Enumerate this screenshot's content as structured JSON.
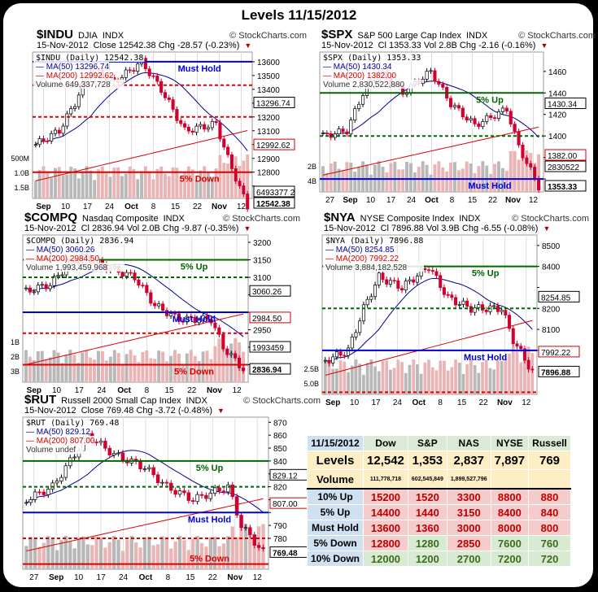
{
  "title": "Levels 11/15/2012",
  "watermark": "© StockCharts.com",
  "charts": [
    {
      "id": "indu",
      "symbol": "$INDU",
      "name": "DJIA",
      "exch": "INDX",
      "date": "15-Nov-2012",
      "line2": "Close 12542.38  Chg -28.57 (-0.23%)",
      "legend": [
        "$INDU (Daily) 12542.38",
        "MA(50) 13296.74",
        "MA(200) 12992.62",
        "Volume 649,337,728"
      ],
      "ylim": [
        12610,
        13670
      ],
      "ticks": [
        13600,
        13500,
        13400,
        13300,
        13200,
        13100,
        13000,
        12900,
        12800,
        12700
      ],
      "badges": [
        {
          "v": "13296.74",
          "y": 13296,
          "c": "#000"
        },
        {
          "v": "12992.62",
          "y": 12992,
          "c": "#c00"
        },
        {
          "v": "6493377 2",
          "y": 12640,
          "c": "#000"
        },
        {
          "v": "12542.38",
          "y": 12560,
          "c": "#000"
        }
      ],
      "vol_ticks": [
        "1.5B",
        "1.0B",
        "500M"
      ],
      "levels": [
        {
          "v": 13600,
          "c": "#0000dd",
          "d": false,
          "label": "Must Hold",
          "lc": "#0000dd"
        },
        {
          "v": 13430,
          "c": "#dd0000",
          "d": true
        },
        {
          "v": 13200,
          "c": "#dd0000",
          "d": true
        },
        {
          "v": 12800,
          "c": "#dd0000",
          "d": false,
          "label": "5% Down",
          "lc": "#dd0000"
        }
      ],
      "path": [
        [
          0,
          13000
        ],
        [
          6,
          13100
        ],
        [
          10,
          13300
        ],
        [
          14,
          13550
        ],
        [
          20,
          13450
        ],
        [
          27,
          13600
        ],
        [
          32,
          13400
        ],
        [
          38,
          13100
        ],
        [
          46,
          13150
        ],
        [
          49,
          12900
        ],
        [
          54,
          12550
        ]
      ],
      "xlabels": [
        "Sep",
        "10",
        "17",
        "24",
        "Oct",
        "8",
        "15",
        "22",
        "Nov",
        "12"
      ]
    },
    {
      "id": "spx",
      "symbol": "$SPX",
      "name": "S&P 500 Large Cap Index",
      "exch": "INDX",
      "date": "15-Nov-2012",
      "line2": "Cl 1353.33  Vol 2.8B  Chg -2.16 (-0.16%)",
      "legend": [
        "$SPX (Daily) 1353.33",
        "MA(50) 1430.34",
        "MA(200) 1382.00",
        "Volume 2,830,522,880"
      ],
      "ylim": [
        1348,
        1478
      ],
      "ticks": [
        1460,
        1440,
        1420,
        1400,
        1380,
        1360
      ],
      "badges": [
        {
          "v": "1430.34",
          "y": 1430,
          "c": "#000"
        },
        {
          "v": "1382.00",
          "y": 1382,
          "c": "#c00"
        },
        {
          "v": "2830522",
          "y": 1372,
          "c": "#000"
        },
        {
          "v": "1353.33",
          "y": 1353,
          "c": "#000"
        }
      ],
      "vol_ticks": [
        "4B",
        "2B"
      ],
      "levels": [
        {
          "v": 1440,
          "c": "#006600",
          "d": false,
          "label": "5% Up",
          "lc": "#006600"
        },
        {
          "v": 1400,
          "c": "#006600",
          "d": true
        },
        {
          "v": 1360,
          "c": "#0000dd",
          "d": false,
          "label": "Must Hold",
          "lc": "#0000dd"
        }
      ],
      "path": [
        [
          0,
          1400
        ],
        [
          6,
          1405
        ],
        [
          10,
          1440
        ],
        [
          14,
          1460
        ],
        [
          20,
          1440
        ],
        [
          27,
          1460
        ],
        [
          32,
          1430
        ],
        [
          38,
          1410
        ],
        [
          46,
          1425
        ],
        [
          49,
          1390
        ],
        [
          54,
          1353
        ]
      ],
      "xlabels": [
        "27",
        "Sep",
        "10",
        "17",
        "24",
        "Oct",
        "8",
        "15",
        "22",
        "Nov",
        "12"
      ]
    },
    {
      "id": "compq",
      "symbol": "$COMPQ",
      "name": "Nasdaq Composite",
      "exch": "INDX",
      "date": "15-Nov-2012",
      "line2": "Cl 2836.94  Vol 2.0B  Chg -9.87 (-0.35%)",
      "legend": [
        "$COMPQ (Daily) 2836.94",
        "MA(50) 3060.26",
        "MA(200) 2984.50",
        "Volume 1,993,459,968"
      ],
      "ylim": [
        2800,
        3221
      ],
      "ticks": [
        3200,
        3150,
        3100,
        3050,
        3000,
        2950,
        2900,
        2850
      ],
      "badges": [
        {
          "v": "3060.26",
          "y": 3060,
          "c": "#000"
        },
        {
          "v": "2984.50",
          "y": 2984,
          "c": "#c00"
        },
        {
          "v": "1993459",
          "y": 2900,
          "c": "#000"
        },
        {
          "v": "2836.94",
          "y": 2837,
          "c": "#000"
        }
      ],
      "vol_ticks": [
        "3B",
        "2B",
        "1B"
      ],
      "levels": [
        {
          "v": 3150,
          "c": "#006600",
          "d": false,
          "label": "5% Up",
          "lc": "#006600"
        },
        {
          "v": 3100,
          "c": "#006600",
          "d": true
        },
        {
          "v": 3000,
          "c": "#0000dd",
          "d": false,
          "label": "Must Hold",
          "lc": "#0000dd"
        },
        {
          "v": 2940,
          "c": "#dd0000",
          "d": true
        },
        {
          "v": 2850,
          "c": "#dd0000",
          "d": false,
          "label": "5% Down",
          "lc": "#dd0000"
        }
      ],
      "path": [
        [
          0,
          3060
        ],
        [
          6,
          3080
        ],
        [
          10,
          3130
        ],
        [
          14,
          3160
        ],
        [
          20,
          3130
        ],
        [
          27,
          3100
        ],
        [
          32,
          3020
        ],
        [
          38,
          2980
        ],
        [
          46,
          2980
        ],
        [
          49,
          2900
        ],
        [
          54,
          2837
        ]
      ],
      "xlabels": [
        "Sep",
        "10",
        "17",
        "24",
        "Oct",
        "8",
        "15",
        "22",
        "Nov",
        "12"
      ]
    },
    {
      "id": "nya",
      "symbol": "$NYA",
      "name": "NYSE Composite Index",
      "exch": "INDX",
      "date": "15-Nov-2012",
      "line2": "Cl 7896.88  Vol 3.9B  Chg -6.55 (-0.08%)",
      "legend": [
        "$NYA (Daily) 7896.88",
        "MA(50) 8254.85",
        "MA(200) 7992.22",
        "Volume 3,884,182,528"
      ],
      "ylim": [
        7790,
        8550
      ],
      "ticks": [
        8500,
        8400,
        8300,
        8200,
        8100,
        8000
      ],
      "badges": [
        {
          "v": "8254.85",
          "y": 8254,
          "c": "#000"
        },
        {
          "v": "7992.22",
          "y": 7992,
          "c": "#c00"
        },
        {
          "v": "7896.88",
          "y": 7897,
          "c": "#000"
        }
      ],
      "vol_ticks": [
        "5.0B",
        "2.5B"
      ],
      "levels": [
        {
          "v": 8400,
          "c": "#006600",
          "d": false,
          "label": "5% Up",
          "lc": "#006600"
        },
        {
          "v": 8200,
          "c": "#006600",
          "d": true
        },
        {
          "v": 8000,
          "c": "#0000dd",
          "d": false,
          "label": "Must Hold",
          "lc": "#0000dd"
        },
        {
          "v": 7800,
          "c": "#dd0000",
          "d": true
        }
      ],
      "path": [
        [
          0,
          7950
        ],
        [
          6,
          8000
        ],
        [
          10,
          8200
        ],
        [
          14,
          8350
        ],
        [
          20,
          8300
        ],
        [
          27,
          8400
        ],
        [
          32,
          8250
        ],
        [
          38,
          8200
        ],
        [
          46,
          8200
        ],
        [
          49,
          8050
        ],
        [
          54,
          7897
        ]
      ],
      "xlabels": [
        "Sep",
        "10",
        "17",
        "24",
        "Oct",
        "8",
        "15",
        "22",
        "Nov",
        "12"
      ]
    },
    {
      "id": "rut",
      "symbol": "$RUT",
      "name": "Russell 2000 Small Cap Index",
      "exch": "INDX",
      "date": "15-Nov-2012",
      "line2": "Close 769.48  Chg -3.72 (-0.48%)",
      "legend": [
        "$RUT (Daily) 769.48",
        "MA(50) 829.12",
        "MA(200) 807.00",
        "Volume undef"
      ],
      "ylim": [
        756,
        874
      ],
      "ticks": [
        870,
        860,
        850,
        840,
        830,
        820,
        810,
        800,
        790,
        780
      ],
      "badges": [
        {
          "v": "829.12",
          "y": 829,
          "c": "#000"
        },
        {
          "v": "807.00",
          "y": 807,
          "c": "#c00"
        },
        {
          "v": "769.48",
          "y": 769,
          "c": "#000"
        }
      ],
      "vol_ticks": [],
      "levels": [
        {
          "v": 840,
          "c": "#006600",
          "d": false,
          "label": "5% Up",
          "lc": "#006600"
        },
        {
          "v": 820,
          "c": "#006600",
          "d": true
        },
        {
          "v": 800,
          "c": "#0000dd",
          "d": false,
          "label": "Must Hold",
          "lc": "#0000dd"
        },
        {
          "v": 780,
          "c": "#dd0000",
          "d": true
        },
        {
          "v": 760,
          "c": "#dd0000",
          "d": false,
          "label": "5% Down",
          "lc": "#dd0000"
        }
      ],
      "path": [
        [
          0,
          810
        ],
        [
          6,
          820
        ],
        [
          10,
          840
        ],
        [
          14,
          860
        ],
        [
          20,
          845
        ],
        [
          27,
          835
        ],
        [
          32,
          820
        ],
        [
          38,
          810
        ],
        [
          46,
          820
        ],
        [
          49,
          790
        ],
        [
          54,
          769
        ]
      ],
      "xlabels": [
        "27",
        "Sep",
        "10",
        "17",
        "24",
        "Oct",
        "8",
        "15",
        "22",
        "Nov",
        "12"
      ]
    }
  ],
  "table": {
    "date": "11/15/2012",
    "cols": [
      "Dow",
      "S&P",
      "NAS",
      "NYSE",
      "Russell"
    ],
    "levels_label": "Levels",
    "levels": [
      "12,542",
      "1,353",
      "2,837",
      "7,897",
      "769"
    ],
    "volume_label": "Volume",
    "volume": [
      "111,778,718",
      "602,545,849",
      "1,899,527,796",
      "",
      ""
    ],
    "rows": [
      {
        "label": "10% Up",
        "vals": [
          "15200",
          "1520",
          "3300",
          "8800",
          "880"
        ],
        "cls": [
          "r",
          "r",
          "r",
          "r",
          "r"
        ]
      },
      {
        "label": "5% Up",
        "vals": [
          "14400",
          "1440",
          "3150",
          "8400",
          "840"
        ],
        "cls": [
          "r",
          "r",
          "r",
          "r",
          "r"
        ]
      },
      {
        "label": "Must Hold",
        "vals": [
          "13600",
          "1360",
          "3000",
          "8000",
          "800"
        ],
        "cls": [
          "r",
          "r",
          "r",
          "r",
          "r"
        ]
      },
      {
        "label": "5% Down",
        "vals": [
          "12800",
          "1280",
          "2850",
          "7600",
          "760"
        ],
        "cls": [
          "r",
          "g",
          "r",
          "g",
          "g"
        ]
      },
      {
        "label": "10% Down",
        "vals": [
          "12000",
          "1200",
          "2700",
          "7200",
          "720"
        ],
        "cls": [
          "g",
          "g",
          "g",
          "g",
          "g"
        ]
      }
    ]
  }
}
